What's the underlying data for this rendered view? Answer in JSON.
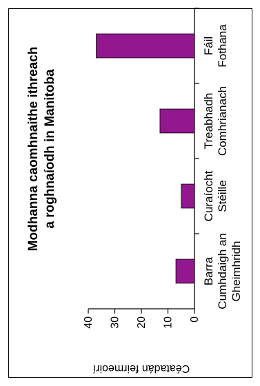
{
  "chart_data": {
    "type": "bar",
    "orientation": "rotated-90-ccw",
    "title_lines": [
      "Modhanna caomhnaithe ithreach",
      "a roghnaíodh in Manitoba"
    ],
    "ylabel": "Céatadán feirmeoirí",
    "xlabel": "",
    "ylim": [
      0,
      40
    ],
    "yticks": [
      0,
      10,
      20,
      30,
      40
    ],
    "grid": false,
    "categories": [
      [
        "Barra",
        "Cumhdaigh an",
        "Gheimhridh"
      ],
      [
        "Curaíocht",
        "Stéille"
      ],
      [
        "Treabhadh",
        "Comhrianach"
      ],
      [
        "Fáil",
        "Fothana"
      ]
    ],
    "values": [
      7,
      5,
      13,
      37
    ],
    "bar_color": "#93188f"
  }
}
